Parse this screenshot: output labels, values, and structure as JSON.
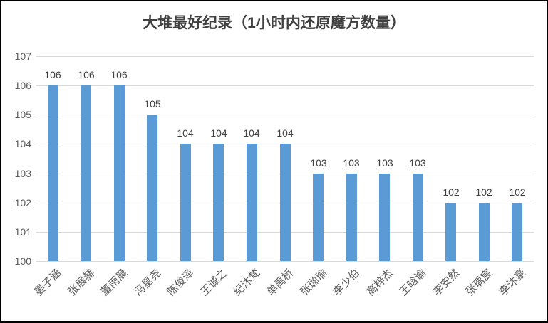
{
  "chart_data": {
    "type": "bar",
    "title": "大堆最好纪录（1小时内还原魔方数量）",
    "categories": [
      "晏子涵",
      "张展赫",
      "董雨晨",
      "冯星尧",
      "陈俊泽",
      "王诚之",
      "纪沐梵",
      "单禹桥",
      "张珈瑜",
      "李少伯",
      "高梓杰",
      "王晗谕",
      "李安然",
      "张瑀宸",
      "李沐豪"
    ],
    "values": [
      106,
      106,
      106,
      105,
      104,
      104,
      104,
      104,
      103,
      103,
      103,
      103,
      102,
      102,
      102
    ],
    "data_labels_shown": true,
    "xlabel": "",
    "ylabel": "",
    "ylim": [
      100,
      107
    ],
    "yticks": [
      100,
      101,
      102,
      103,
      104,
      105,
      106,
      107
    ],
    "grid": true,
    "legend": "none",
    "colors": {
      "bar": "#5B9BD5",
      "gridline": "#D9D9D9",
      "axis_text": "#595959",
      "data_label": "#404040",
      "title": "#404040",
      "frame_border": "#000000",
      "background": "#ffffff"
    }
  }
}
